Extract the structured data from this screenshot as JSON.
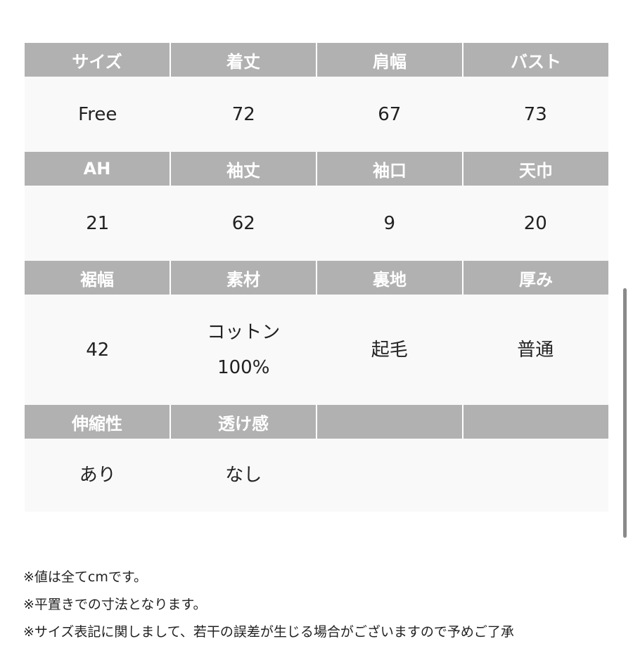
{
  "rows": [
    {
      "headers": [
        "サイズ",
        "着丈",
        "肩幅",
        "バスト"
      ],
      "values": [
        "Free",
        "72",
        "67",
        "73"
      ]
    },
    {
      "headers": [
        "AH",
        "袖丈",
        "袖口",
        "天巾"
      ],
      "values": [
        "21",
        "62",
        "9",
        "20"
      ]
    },
    {
      "headers": [
        "裾幅",
        "素材",
        "裏地",
        "厚み"
      ],
      "values": [
        "42",
        "コットン\n100%",
        "起毛",
        "普通"
      ]
    },
    {
      "headers": [
        "伸縮性",
        "透け感",
        "",
        ""
      ],
      "values": [
        "あり",
        "なし",
        "",
        ""
      ]
    }
  ],
  "notes": [
    "※値は全てcmです。",
    "※平置きでの寸法となります。",
    "※サイズ表記に関しまして、若干の誤差が生じる場合がございますので予めご了承"
  ],
  "colors": {
    "header_bg": "#b1b1b1",
    "header_text": "#ffffff",
    "body_bg": "#f9f9f9"
  }
}
